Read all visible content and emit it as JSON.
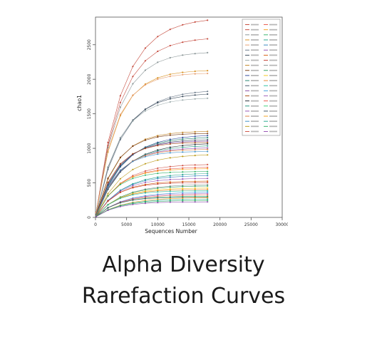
{
  "caption": {
    "line1": "Alpha Diversity",
    "line2": "Rarefaction Curves"
  },
  "chart_data": {
    "type": "line",
    "title": "",
    "xlabel": "Sequences Number",
    "ylabel": "chao1",
    "xlim": [
      0,
      30000
    ],
    "ylim": [
      0,
      2900
    ],
    "xticks": [
      0,
      5000,
      10000,
      15000,
      20000,
      25000,
      30000
    ],
    "yticks": [
      0,
      500,
      1000,
      1500,
      2000,
      2500
    ],
    "grid": false,
    "legend_position": "top-right",
    "x": [
      100,
      2000,
      4000,
      6000,
      8000,
      10000,
      12000,
      14000,
      16000,
      18000
    ],
    "final_values": [
      2850,
      2580,
      2380,
      2120,
      2080,
      1820,
      1780,
      1720,
      1240,
      1210,
      1180,
      1150,
      1120,
      1100,
      1080,
      1060,
      1030,
      1000,
      980,
      950,
      900,
      760,
      720,
      700,
      660,
      630,
      600,
      560,
      520,
      500,
      470,
      450,
      420,
      400,
      380,
      360,
      340,
      320,
      300,
      290,
      280,
      260,
      240,
      220
    ],
    "colors": [
      "#c03a2b",
      "#c0392b",
      "#7f8c8d",
      "#d68910",
      "#e59866",
      "#5d6d7e",
      "#2c3e50",
      "#95a5a6",
      "#b9770e",
      "#6e2c00",
      "#1f3a93",
      "#117864",
      "#34495e",
      "#7d3c98",
      "#a04000",
      "#17202a",
      "#148f77",
      "#8e44ad",
      "#dc7633",
      "#2e86c1",
      "#b7950b",
      "#cb4335",
      "#e74c3c",
      "#f39c12",
      "#27ae60",
      "#16a085",
      "#2980b9",
      "#8e44ad",
      "#d35400",
      "#c0392b",
      "#7f8c8d",
      "#229954",
      "#f1c40f",
      "#e67e22",
      "#1abc9c",
      "#3498db",
      "#9b59b6",
      "#e74c3c",
      "#2ecc71",
      "#34495e",
      "#f39c12",
      "#16a085",
      "#27ae60",
      "#8e44ad"
    ]
  }
}
